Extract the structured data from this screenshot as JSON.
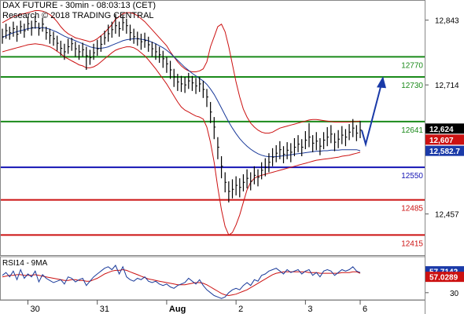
{
  "header": {
    "line1": "DAX FUTURE - 30min - 08:03:13 (CET)",
    "line2": "Research © 2018 TRADING CENTRAL"
  },
  "colors": {
    "price": "#000000",
    "bollinger": "#cc1111",
    "ma": "#1a3a9a",
    "resistance": "#1a8a1a",
    "pivot": "#1414b4",
    "support": "#cc1111",
    "arrow": "#1a3aa8",
    "grid": "#bbbbbb",
    "last_price_badge": "#000000",
    "price2_badge": "#cc1111",
    "ma_badge": "#1a3aa8"
  },
  "chart_data": [
    {
      "type": "line",
      "title": "DAX FUTURE - 30min - 08:03:13 (CET)",
      "x_ticks": [
        "30",
        "31",
        "Aug",
        "2",
        "3",
        "6"
      ],
      "y_ticks": [
        "12,843",
        "12,714",
        "12,457"
      ],
      "ylim": [
        12375,
        12880
      ],
      "price_labels": {
        "last": "12,624",
        "second": "12,607",
        "ma": "12,582.7"
      },
      "levels": [
        {
          "label": "12770",
          "value": 12770,
          "kind": "resistance"
        },
        {
          "label": "12730",
          "value": 12730,
          "kind": "resistance"
        },
        {
          "label": "12641",
          "value": 12641,
          "kind": "resistance"
        },
        {
          "label": "12550",
          "value": 12550,
          "kind": "pivot"
        },
        {
          "label": "12485",
          "value": 12485,
          "kind": "support"
        },
        {
          "label": "12415",
          "value": 12415,
          "kind": "support"
        }
      ],
      "arrow": {
        "from": [
          118,
          12596
        ],
        "via": [
          118,
          12596
        ],
        "to": [
          128,
          12728
        ],
        "start": [
          115,
          12624
        ]
      },
      "series": [
        {
          "role": "price",
          "values": [
            12810,
            12822,
            12818,
            12826,
            12815,
            12830,
            12822,
            12836,
            12828,
            12840,
            12826,
            12835,
            12818,
            12812,
            12806,
            12797,
            12787,
            12780,
            12790,
            12796,
            12786,
            12780,
            12784,
            12772,
            12768,
            12778,
            12786,
            12795,
            12808,
            12816,
            12824,
            12832,
            12826,
            12838,
            12832,
            12818,
            12810,
            12806,
            12800,
            12802,
            12794,
            12786,
            12780,
            12774,
            12766,
            12756,
            12744,
            12730,
            12720,
            12716,
            12714,
            12722,
            12718,
            12712,
            12716,
            12705,
            12690,
            12660,
            12630,
            12590,
            12552,
            12520,
            12502,
            12506,
            12514,
            12510,
            12520,
            12528,
            12522,
            12534,
            12530,
            12544,
            12550,
            12560,
            12570,
            12578,
            12585,
            12576,
            12584,
            12580,
            12590,
            12596,
            12590,
            12604,
            12610,
            12598,
            12602,
            12592,
            12604,
            12610,
            12616,
            12600,
            12606,
            12614,
            12610,
            12620,
            12628,
            12618,
            12624
          ],
          "highs": [
            12826,
            12836,
            12830,
            12840,
            12832,
            12842,
            12836,
            12850,
            12842,
            12852,
            12838,
            12848,
            12830,
            12826,
            12820,
            12812,
            12802,
            12796,
            12806,
            12808,
            12800,
            12794,
            12798,
            12790,
            12784,
            12796,
            12804,
            12812,
            12822,
            12834,
            12840,
            12855,
            12840,
            12852,
            12846,
            12834,
            12826,
            12820,
            12816,
            12818,
            12810,
            12800,
            12796,
            12790,
            12782,
            12770,
            12762,
            12746,
            12736,
            12732,
            12730,
            12738,
            12732,
            12728,
            12730,
            12722,
            12706,
            12680,
            12650,
            12610,
            12572,
            12540,
            12522,
            12526,
            12532,
            12528,
            12536,
            12546,
            12540,
            12552,
            12546,
            12560,
            12568,
            12578,
            12588,
            12594,
            12602,
            12592,
            12600,
            12598,
            12608,
            12614,
            12606,
            12622,
            12638,
            12614,
            12620,
            12608,
            12620,
            12630,
            12634,
            12618,
            12624,
            12632,
            12626,
            12636,
            12646,
            12634,
            12642
          ],
          "lows": [
            12796,
            12806,
            12804,
            12810,
            12800,
            12816,
            12808,
            12822,
            12812,
            12826,
            12812,
            12820,
            12804,
            12796,
            12792,
            12782,
            12772,
            12764,
            12776,
            12782,
            12770,
            12764,
            12770,
            12744,
            12754,
            12764,
            12772,
            12780,
            12794,
            12800,
            12808,
            12816,
            12810,
            12822,
            12816,
            12802,
            12796,
            12792,
            12784,
            12788,
            12780,
            12770,
            12764,
            12758,
            12748,
            12738,
            12726,
            12710,
            12702,
            12700,
            12698,
            12706,
            12702,
            12696,
            12700,
            12688,
            12670,
            12638,
            12606,
            12566,
            12528,
            12500,
            12480,
            12488,
            12494,
            12490,
            12502,
            12508,
            12504,
            12516,
            12512,
            12526,
            12532,
            12540,
            12552,
            12560,
            12566,
            12558,
            12566,
            12560,
            12572,
            12580,
            12572,
            12586,
            12590,
            12580,
            12584,
            12574,
            12586,
            12592,
            12598,
            12582,
            12588,
            12596,
            12592,
            12604,
            12610,
            12602,
            12608
          ]
        },
        {
          "role": "moving-average",
          "values": [
            12808,
            12812,
            12815,
            12818,
            12820,
            12822,
            12824,
            12826,
            12827,
            12828,
            12828,
            12828,
            12827,
            12825,
            12822,
            12819,
            12815,
            12811,
            12808,
            12805,
            12802,
            12799,
            12796,
            12793,
            12790,
            12788,
            12787,
            12787,
            12788,
            12790,
            12793,
            12796,
            12799,
            12802,
            12804,
            12805,
            12806,
            12806,
            12805,
            12804,
            12802,
            12799,
            12796,
            12792,
            12788,
            12783,
            12777,
            12770,
            12763,
            12756,
            12749,
            12743,
            12737,
            12732,
            12727,
            12722,
            12715,
            12706,
            12695,
            12682,
            12668,
            12654,
            12640,
            12628,
            12617,
            12607,
            12599,
            12592,
            12586,
            12581,
            12577,
            12574,
            12572,
            12571,
            12571,
            12571,
            12572,
            12573,
            12574,
            12575,
            12576,
            12577,
            12578,
            12579,
            12580,
            12581,
            12582,
            12582,
            12583,
            12583,
            12584,
            12584,
            12584,
            12585,
            12585,
            12585,
            12585,
            12585,
            12583
          ]
        },
        {
          "role": "bollinger-upper",
          "values": [
            12838,
            12842,
            12846,
            12850,
            12852,
            12855,
            12856,
            12858,
            12860,
            12862,
            12862,
            12861,
            12858,
            12854,
            12848,
            12840,
            12830,
            12822,
            12816,
            12812,
            12808,
            12806,
            12804,
            12802,
            12800,
            12802,
            12806,
            12812,
            12818,
            12826,
            12834,
            12845,
            12850,
            12856,
            12858,
            12858,
            12856,
            12852,
            12846,
            12840,
            12832,
            12824,
            12816,
            12808,
            12800,
            12792,
            12780,
            12770,
            12760,
            12752,
            12746,
            12742,
            12740,
            12740,
            12742,
            12746,
            12760,
            12790,
            12810,
            12830,
            12835,
            12820,
            12790,
            12755,
            12720,
            12690,
            12666,
            12650,
            12638,
            12630,
            12624,
            12620,
            12618,
            12618,
            12620,
            12624,
            12628,
            12630,
            12632,
            12634,
            12636,
            12638,
            12640,
            12642,
            12644,
            12645,
            12645,
            12644,
            12643,
            12642,
            12641,
            12640,
            12640,
            12640,
            12640,
            12640,
            12641,
            12641,
            12642
          ]
        },
        {
          "role": "bollinger-lower",
          "values": [
            12780,
            12782,
            12784,
            12786,
            12788,
            12790,
            12792,
            12794,
            12795,
            12796,
            12795,
            12794,
            12792,
            12790,
            12786,
            12781,
            12776,
            12770,
            12766,
            12762,
            12758,
            12754,
            12752,
            12748,
            12748,
            12750,
            12754,
            12760,
            12766,
            12772,
            12778,
            12783,
            12786,
            12788,
            12790,
            12790,
            12788,
            12784,
            12778,
            12772,
            12764,
            12755,
            12746,
            12736,
            12726,
            12716,
            12704,
            12692,
            12680,
            12670,
            12664,
            12660,
            12656,
            12652,
            12650,
            12646,
            12630,
            12600,
            12560,
            12510,
            12465,
            12432,
            12415,
            12420,
            12435,
            12455,
            12480,
            12505,
            12520,
            12528,
            12532,
            12534,
            12536,
            12538,
            12540,
            12542,
            12544,
            12546,
            12548,
            12550,
            12552,
            12554,
            12556,
            12558,
            12560,
            12562,
            12564,
            12565,
            12566,
            12567,
            12568,
            12569,
            12570,
            12572,
            12573,
            12574,
            12576,
            12578,
            12580
          ]
        }
      ]
    },
    {
      "type": "line",
      "title": "RSI14 - 9MA",
      "y_ticks": [
        "30"
      ],
      "ylim": [
        20,
        80
      ],
      "labels": {
        "rsi": "57.7142",
        "ma": "57.0289"
      },
      "series": [
        {
          "role": "rsi",
          "values": [
            54,
            58,
            52,
            60,
            48,
            62,
            50,
            56,
            52,
            60,
            45,
            55,
            50,
            47,
            44,
            46,
            48,
            42,
            52,
            50,
            45,
            48,
            50,
            40,
            46,
            52,
            56,
            60,
            64,
            66,
            62,
            68,
            56,
            66,
            52,
            48,
            46,
            50,
            48,
            52,
            46,
            44,
            46,
            42,
            40,
            42,
            38,
            36,
            40,
            42,
            44,
            50,
            46,
            42,
            48,
            40,
            34,
            30,
            26,
            24,
            22,
            24,
            30,
            34,
            36,
            34,
            40,
            44,
            40,
            48,
            46,
            54,
            56,
            60,
            62,
            64,
            60,
            56,
            62,
            58,
            60,
            62,
            56,
            60,
            62,
            54,
            58,
            52,
            60,
            62,
            60,
            54,
            58,
            62,
            60,
            62,
            66,
            60,
            58
          ],
          "name": "RSI14"
        },
        {
          "role": "rsi-ma",
          "values": [
            52,
            53,
            54,
            54,
            55,
            55,
            54,
            54,
            54,
            55,
            54,
            53,
            52,
            51,
            50,
            49,
            48,
            47,
            47,
            48,
            48,
            47,
            47,
            46,
            46,
            48,
            50,
            53,
            56,
            58,
            60,
            61,
            61,
            62,
            61,
            59,
            57,
            55,
            53,
            51,
            49,
            48,
            47,
            46,
            45,
            44,
            43,
            42,
            41,
            41,
            41,
            42,
            43,
            44,
            44,
            43,
            41,
            38,
            35,
            32,
            29,
            27,
            26,
            27,
            28,
            30,
            32,
            34,
            37,
            40,
            43,
            46,
            49,
            52,
            55,
            57,
            58,
            59,
            59,
            59,
            59,
            59,
            59,
            59,
            58,
            58,
            58,
            57,
            57,
            57,
            57,
            57,
            57,
            58,
            58,
            58,
            59,
            59,
            57
          ],
          "name": "9MA"
        }
      ]
    }
  ]
}
